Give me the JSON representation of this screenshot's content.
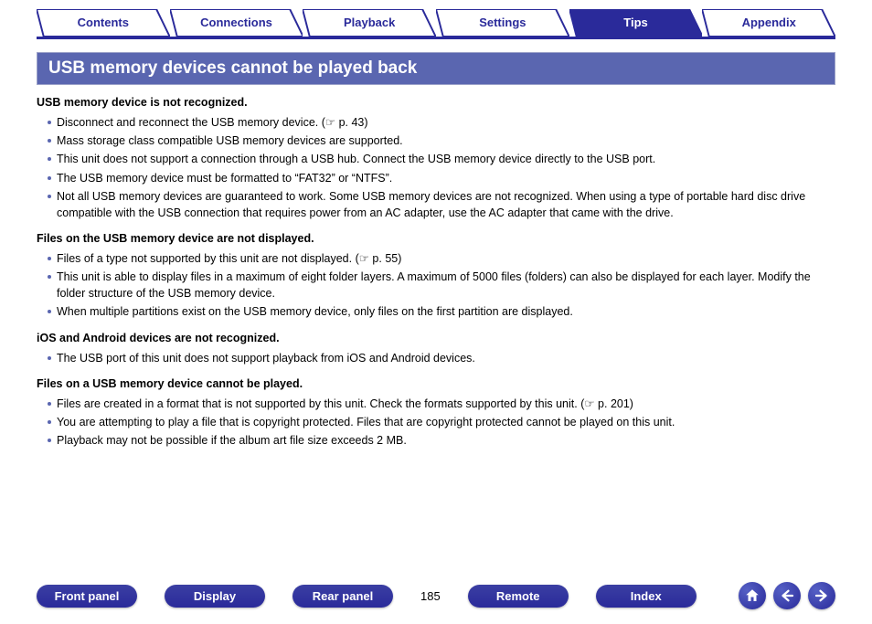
{
  "colors": {
    "brand": "#2a2a9a",
    "banner_bg": "#5a66b0",
    "banner_border": "#9aa0c8",
    "bullet": "#5a66b0",
    "white": "#ffffff",
    "text": "#000000"
  },
  "tabs": [
    {
      "label": "Contents",
      "active": false
    },
    {
      "label": "Connections",
      "active": false
    },
    {
      "label": "Playback",
      "active": false
    },
    {
      "label": "Settings",
      "active": false
    },
    {
      "label": "Tips",
      "active": true
    },
    {
      "label": "Appendix",
      "active": false
    }
  ],
  "banner_title": "USB memory devices cannot be played back",
  "sections": [
    {
      "title": "USB memory device is not recognized.",
      "items": [
        "Disconnect and reconnect the USB memory device.  (☞ p. 43)",
        "Mass storage class compatible USB memory devices are supported.",
        "This unit does not support a connection through a USB hub. Connect the USB memory device directly to the USB port.",
        "The USB memory device must be formatted to “FAT32” or “NTFS”.",
        "Not all USB memory devices are guaranteed to work. Some USB memory devices are not recognized. When using a type of portable hard disc drive compatible with the USB connection that requires power from an AC adapter, use the AC adapter that came with the drive."
      ]
    },
    {
      "title": "Files on the USB memory device are not displayed.",
      "items": [
        "Files of a type not supported by this unit are not displayed.  (☞ p. 55)",
        "This unit is able to display files in a maximum of eight folder layers. A maximum of 5000 files (folders) can also be displayed for each layer. Modify the folder structure of the USB memory device.",
        "When multiple partitions exist on the USB memory device, only files on the first partition are displayed."
      ]
    },
    {
      "title": "iOS and Android devices are not recognized.",
      "items": [
        "The USB port of this unit does not support playback from iOS and Android devices."
      ]
    },
    {
      "title": "Files on a USB memory device cannot be played.",
      "items": [
        "Files are created in a format that is not supported by this unit. Check the formats supported by this unit.  (☞ p. 201)",
        "You are attempting to play a file that is copyright protected. Files that are copyright protected cannot be played on this unit.",
        "Playback may not be possible if the album art file size exceeds 2 MB."
      ]
    }
  ],
  "bottom_nav": {
    "buttons": [
      "Front panel",
      "Display",
      "Rear panel",
      "Remote",
      "Index"
    ],
    "page_number": "185"
  },
  "nav_icons": [
    "home-icon",
    "prev-icon",
    "next-icon"
  ]
}
